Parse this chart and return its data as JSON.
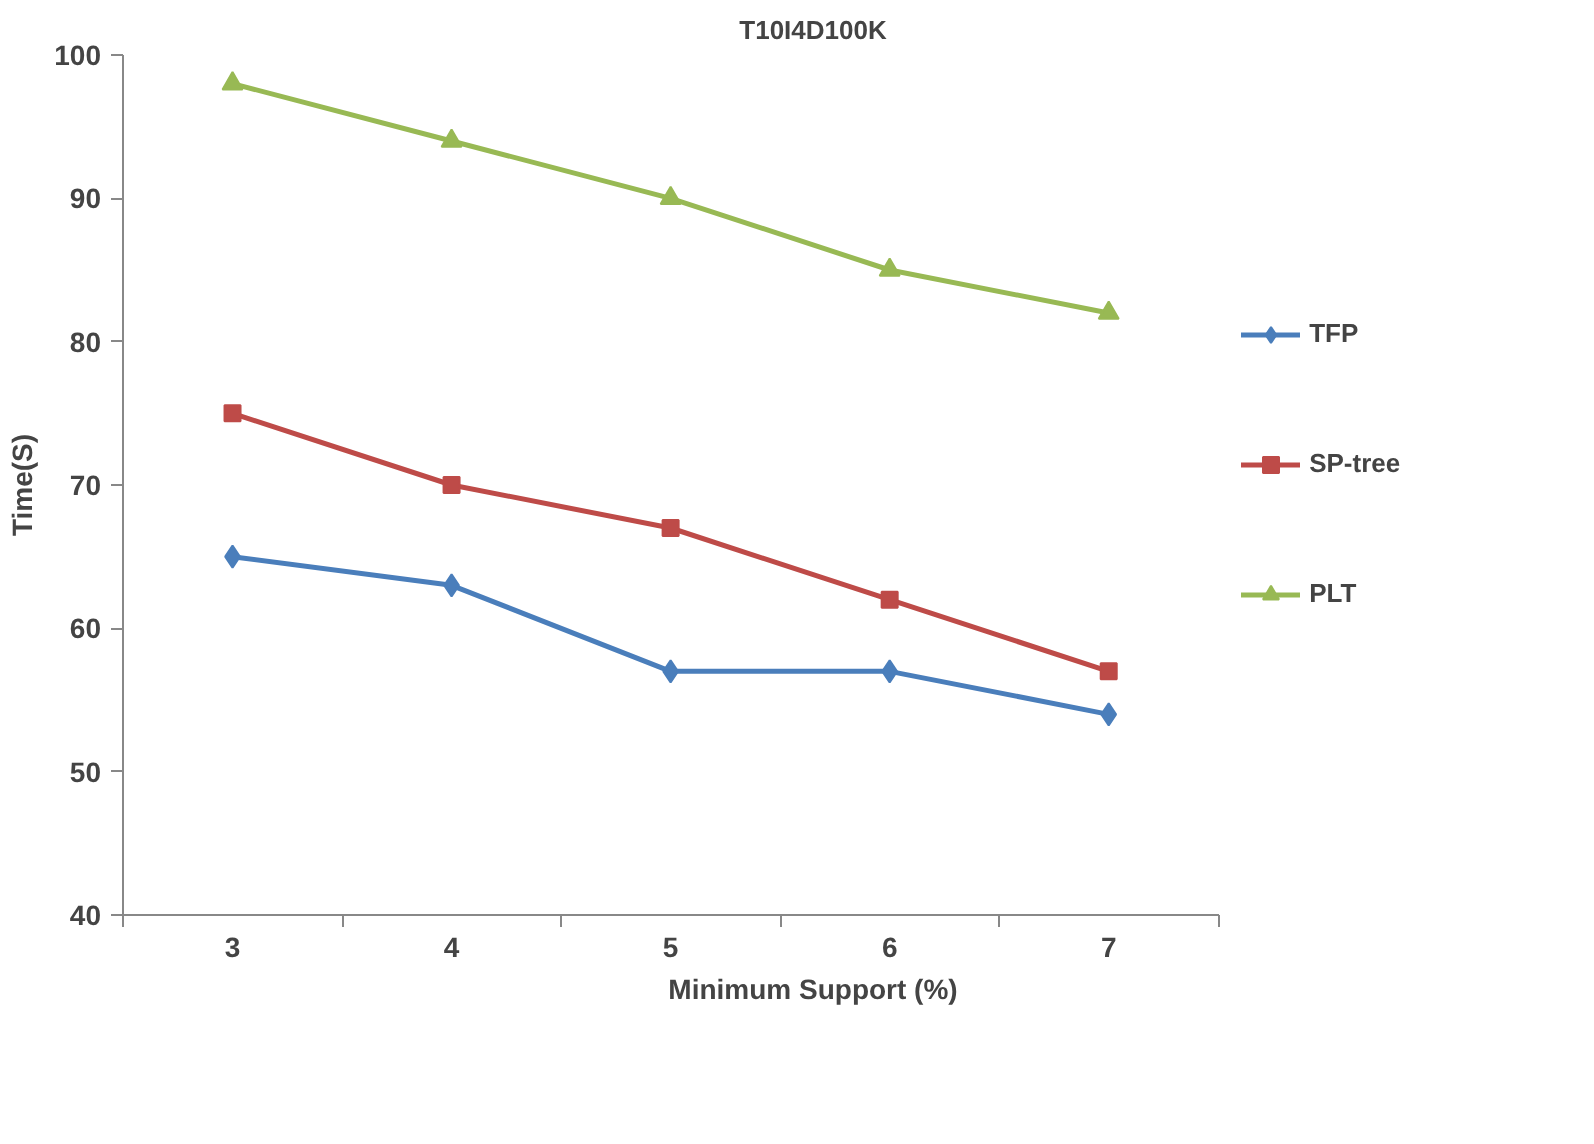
{
  "chart_data": {
    "type": "line",
    "title": "T10I4D100K",
    "xlabel": "Minimum Support (%)",
    "ylabel": "Time(S)",
    "categories": [
      "3",
      "4",
      "5",
      "6",
      "7"
    ],
    "series": [
      {
        "name": "TFP",
        "color": "#4a7ebb",
        "marker": "diamond",
        "values": [
          65,
          63,
          57,
          57,
          54
        ]
      },
      {
        "name": "SP-tree",
        "color": "#be4b48",
        "marker": "square",
        "values": [
          75,
          70,
          67,
          62,
          57
        ]
      },
      {
        "name": "PLT",
        "color": "#98b954",
        "marker": "triangle",
        "values": [
          98,
          94,
          90,
          85,
          82
        ]
      }
    ],
    "ylim": [
      40,
      100
    ],
    "yticks": [
      40,
      50,
      60,
      70,
      80,
      90,
      100
    ],
    "grid": false,
    "legend": "right",
    "line_style": "solid"
  }
}
